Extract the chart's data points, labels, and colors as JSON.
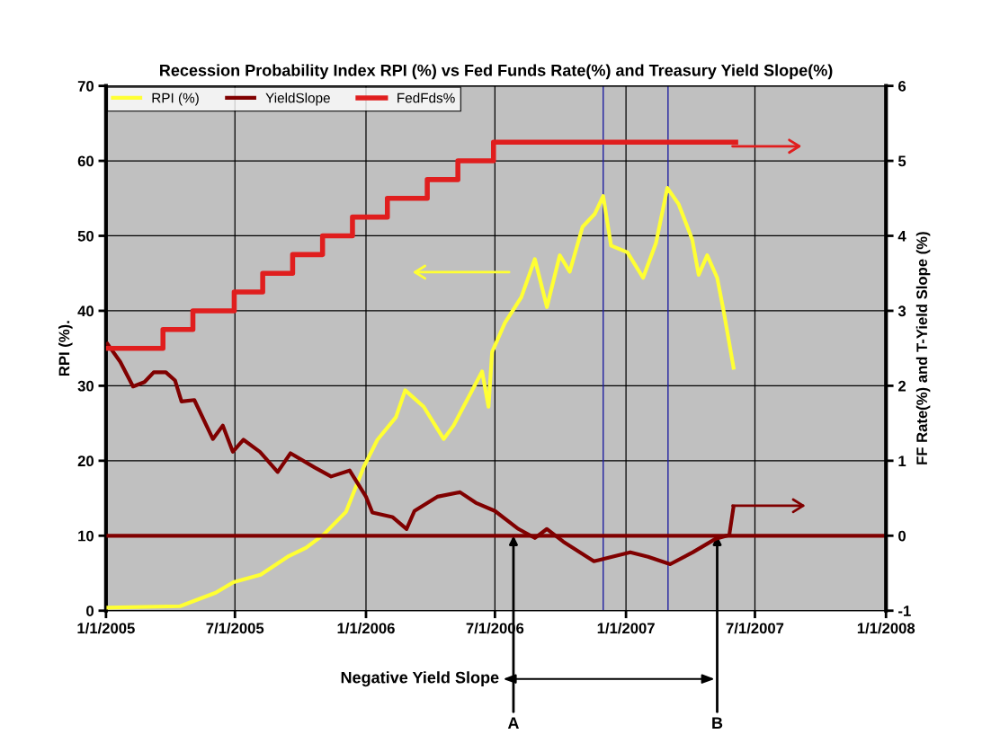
{
  "chart_data": {
    "type": "line",
    "title": "Recession Probability Index RPI (%) vs Fed Funds Rate(%) and Treasury Yield Slope(%)",
    "ylabel": "RPI (%).",
    "y2label": "FF Rate(%) and T-Yield Slope (%)",
    "xlim": [
      "2005-01-01",
      "2008-01-01"
    ],
    "xticks": [
      {
        "value": "2005-01-01",
        "label": "1/1/2005"
      },
      {
        "value": "2005-07-01",
        "label": "7/1/2005"
      },
      {
        "value": "2006-01-01",
        "label": "1/1/2006"
      },
      {
        "value": "2006-07-01",
        "label": "7/1/2006"
      },
      {
        "value": "2007-01-01",
        "label": "1/1/2007"
      },
      {
        "value": "2007-07-01",
        "label": "7/1/2007"
      },
      {
        "value": "2008-01-01",
        "label": "1/1/2008"
      }
    ],
    "ylim": [
      0,
      70
    ],
    "yticks": [
      0,
      10,
      20,
      30,
      40,
      50,
      60,
      70
    ],
    "y2lim": [
      -1,
      6
    ],
    "y2ticks": [
      -1,
      0,
      1,
      2,
      3,
      4,
      5,
      6
    ],
    "grid": true,
    "legend": "top left",
    "series": [
      {
        "name": "RPI (%)",
        "color": "#ffff33",
        "x": [
          "2005-01-03",
          "2005-04-15",
          "2005-06-04",
          "2005-06-29",
          "2005-08-06",
          "2005-09-13",
          "2005-10-09",
          "2005-11-03",
          "2005-12-04",
          "2005-12-29",
          "2006-01-17",
          "2006-02-12",
          "2006-02-25",
          "2006-03-23",
          "2006-04-20",
          "2006-05-04",
          "2006-06-13",
          "2006-06-22",
          "2006-06-27",
          "2006-07-15",
          "2006-08-07",
          "2006-08-26",
          "2006-09-12",
          "2006-09-30",
          "2006-10-14",
          "2006-11-01",
          "2006-11-18",
          "2006-11-30",
          "2006-12-11",
          "2007-01-03",
          "2007-01-25",
          "2007-02-12",
          "2007-02-28",
          "2007-03-16",
          "2007-04-04",
          "2007-04-13",
          "2007-04-25",
          "2007-05-09",
          "2007-05-18",
          "2007-06-01"
        ],
        "values": [
          0.4,
          0.6,
          2.4,
          3.8,
          4.8,
          7.2,
          8.4,
          10.2,
          13.2,
          19.2,
          22.8,
          25.8,
          29.4,
          27.2,
          22.9,
          24.7,
          31.9,
          27.2,
          34.5,
          38.4,
          41.8,
          46.9,
          40.5,
          47.4,
          45.2,
          51.2,
          52.9,
          55.3,
          48.7,
          47.8,
          44.4,
          49.0,
          56.4,
          54.2,
          49.5,
          44.8,
          47.4,
          44.4,
          40.0,
          32.4
        ]
      },
      {
        "name": "YieldSlope",
        "color": "#800000",
        "axis": "y2",
        "x": [
          "2005-01-03",
          "2005-01-21",
          "2005-02-08",
          "2005-02-24",
          "2005-03-09",
          "2005-03-26",
          "2005-04-08",
          "2005-04-17",
          "2005-05-05",
          "2005-05-31",
          "2005-06-14",
          "2005-06-28",
          "2005-07-13",
          "2005-08-05",
          "2005-08-30",
          "2005-09-17",
          "2005-10-21",
          "2005-11-13",
          "2005-12-09",
          "2006-01-01",
          "2006-01-10",
          "2006-02-07",
          "2006-02-27",
          "2006-03-10",
          "2006-04-11",
          "2006-05-13",
          "2006-06-04",
          "2006-07-01",
          "2006-08-03",
          "2006-08-26",
          "2006-09-12",
          "2006-10-05",
          "2006-11-17",
          "2007-01-07",
          "2007-02-01",
          "2007-03-04",
          "2007-04-05",
          "2007-05-07",
          "2007-05-26",
          "2007-06-01"
        ],
        "values": [
          2.56,
          2.32,
          1.99,
          2.05,
          2.18,
          2.18,
          2.07,
          1.79,
          1.81,
          1.29,
          1.47,
          1.12,
          1.28,
          1.12,
          0.85,
          1.1,
          0.91,
          0.79,
          0.87,
          0.52,
          0.31,
          0.25,
          0.09,
          0.33,
          0.52,
          0.58,
          0.44,
          0.33,
          0.09,
          -0.03,
          0.09,
          -0.08,
          -0.34,
          -0.22,
          -0.28,
          -0.38,
          -0.22,
          -0.04,
          0.01,
          0.39
        ]
      },
      {
        "name": "FedFds%",
        "color": "#e01e1e",
        "type": "step",
        "axis": "y2",
        "x": [
          "2005-01-01",
          "2005-03-22",
          "2005-05-03",
          "2005-06-30",
          "2005-08-09",
          "2005-09-20",
          "2005-11-01",
          "2005-12-13",
          "2006-01-31",
          "2006-03-28",
          "2006-05-10",
          "2006-06-29",
          "2007-06-04"
        ],
        "values": [
          2.5,
          2.75,
          3.0,
          3.25,
          3.5,
          3.75,
          4.0,
          4.25,
          4.5,
          4.75,
          5.0,
          5.25,
          5.25
        ]
      }
    ],
    "ref_lines": [
      {
        "axis": "y2",
        "value": 0,
        "color": "#800000"
      },
      {
        "axis": "x",
        "value": "2006-11-30",
        "color": "#2020a0"
      },
      {
        "axis": "x",
        "value": "2007-03-01",
        "color": "#2020a0"
      }
    ],
    "annotations": [
      "Negative Yield Slope",
      {
        "text": "A",
        "x": "2006-07-27",
        "y": 10
      },
      {
        "text": "B",
        "x": "2007-05-09",
        "y": 10
      }
    ]
  }
}
